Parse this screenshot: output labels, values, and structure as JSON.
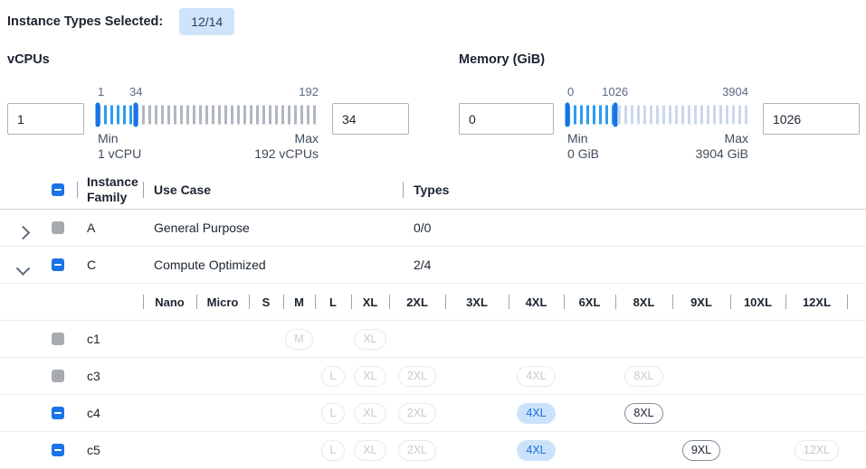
{
  "header": {
    "label": "Instance Types Selected:",
    "count_badge": "12/14"
  },
  "filters": {
    "vcpus": {
      "label": "vCPUs",
      "min_input": "1",
      "max_input": "34",
      "slider": {
        "min_label": "1",
        "current_label": "34",
        "max_label": "192",
        "selected_percent": 17.3,
        "min_caption": "Min",
        "min_value_caption": "1 vCPU",
        "max_caption": "Max",
        "max_value_caption": "192 vCPUs"
      }
    },
    "memory": {
      "label": "Memory (GiB)",
      "min_input": "0",
      "max_input": "1026",
      "slider": {
        "min_label": "0",
        "current_label": "1026",
        "max_label": "3904",
        "selected_percent": 26.3,
        "min_caption": "Min",
        "min_value_caption": "0 GiB",
        "max_caption": "Max",
        "max_value_caption": "3904 GiB"
      }
    }
  },
  "table": {
    "columns": {
      "family": "Instance Family",
      "use_case": "Use Case",
      "types": "Types"
    },
    "select_all_checkbox": "indeterminate",
    "groups": [
      {
        "family": "A",
        "use_case": "General Purpose",
        "types": "0/0",
        "expanded": false,
        "checkbox": "disabled"
      },
      {
        "family": "C",
        "use_case": "Compute Optimized",
        "types": "2/4",
        "expanded": true,
        "checkbox": "indeterminate"
      }
    ],
    "sizes": [
      "Nano",
      "Micro",
      "S",
      "M",
      "L",
      "XL",
      "2XL",
      "3XL",
      "4XL",
      "6XL",
      "8XL",
      "9XL",
      "10XL",
      "12XL"
    ],
    "families": [
      {
        "name": "c1",
        "checkbox": "disabled",
        "pills": [
          {
            "size": "M",
            "state": "disabled"
          },
          {
            "size": "XL",
            "state": "disabled"
          }
        ]
      },
      {
        "name": "c3",
        "checkbox": "disabled",
        "pills": [
          {
            "size": "L",
            "state": "disabled"
          },
          {
            "size": "XL",
            "state": "disabled"
          },
          {
            "size": "2XL",
            "state": "disabled"
          },
          {
            "size": "4XL",
            "state": "disabled"
          },
          {
            "size": "8XL",
            "state": "disabled"
          }
        ]
      },
      {
        "name": "c4",
        "checkbox": "indeterminate",
        "pills": [
          {
            "size": "L",
            "state": "disabled"
          },
          {
            "size": "XL",
            "state": "disabled"
          },
          {
            "size": "2XL",
            "state": "disabled"
          },
          {
            "size": "4XL",
            "state": "selected"
          },
          {
            "size": "8XL",
            "state": "enabled"
          }
        ]
      },
      {
        "name": "c5",
        "checkbox": "indeterminate",
        "pills": [
          {
            "size": "L",
            "state": "disabled"
          },
          {
            "size": "XL",
            "state": "disabled"
          },
          {
            "size": "2XL",
            "state": "disabled"
          },
          {
            "size": "4XL",
            "state": "selected"
          },
          {
            "size": "9XL",
            "state": "enabled"
          },
          {
            "size": "12XL",
            "state": "disabled"
          }
        ]
      }
    ]
  },
  "colors": {
    "accent_blue": "#1a73e8",
    "selected_pill_bg": "#cbe3fa",
    "badge_bg": "#cfe4fb",
    "disabled_gray": "#a7abb1",
    "slider_active_tick": "#2d9cf0",
    "slider_inactive_tick_vcpu": "#b0b7c0",
    "slider_inactive_tick_memory": "#ccd7ee"
  }
}
